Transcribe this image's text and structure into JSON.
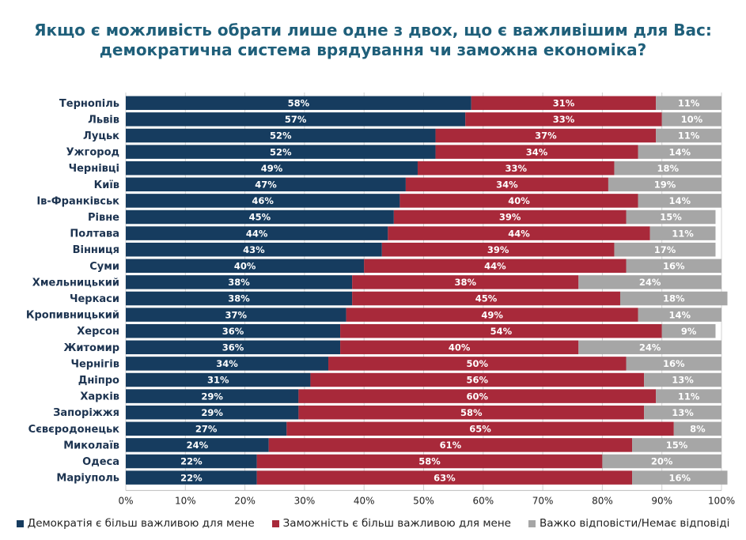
{
  "chart_data": {
    "type": "bar",
    "orientation": "horizontal",
    "stacked": true,
    "title": "Якщо є можливість обрати лише одне з двох, що є важливішим для Вас: демократична система врядування чи заможна економіка?",
    "title_lines": [
      "Якщо є можливість обрати лише одне з двох, що є важливішим для Вас:",
      "демократична система врядування чи заможна економіка?"
    ],
    "categories": [
      "Тернопіль",
      "Львів",
      "Луцьк",
      "Ужгород",
      "Чернівці",
      "Київ",
      "Ів-Франківськ",
      "Рівне",
      "Полтава",
      "Вінниця",
      "Суми",
      "Хмельницький",
      "Черкаси",
      "Кропивницький",
      "Херсон",
      "Житомир",
      "Чернігів",
      "Дніпро",
      "Харків",
      "Запоріжжя",
      "Сєвєродонецьк",
      "Миколаїв",
      "Одеса",
      "Маріуполь"
    ],
    "series": [
      {
        "name": "Демократія є більш важливою для мене",
        "color": "#163c5f",
        "values": [
          58,
          57,
          52,
          52,
          49,
          47,
          46,
          45,
          44,
          43,
          40,
          38,
          38,
          37,
          36,
          36,
          34,
          31,
          29,
          29,
          27,
          24,
          22,
          22
        ]
      },
      {
        "name": "Заможність є більш важливою для мене",
        "color": "#a8293a",
        "values": [
          31,
          33,
          37,
          34,
          33,
          34,
          40,
          39,
          44,
          39,
          44,
          38,
          45,
          49,
          54,
          40,
          50,
          56,
          60,
          58,
          65,
          61,
          58,
          63
        ]
      },
      {
        "name": "Важко відповісти/Немає відповіді",
        "color": "#a6a6a6",
        "values": [
          11,
          10,
          11,
          14,
          18,
          19,
          14,
          15,
          11,
          17,
          16,
          24,
          18,
          14,
          9,
          24,
          16,
          13,
          11,
          13,
          8,
          15,
          20,
          16
        ]
      }
    ],
    "xlim": [
      0,
      100
    ],
    "xticks": [
      "0%",
      "10%",
      "20%",
      "30%",
      "40%",
      "50%",
      "60%",
      "70%",
      "80%",
      "90%",
      "100%"
    ],
    "grid": true,
    "legend_position": "bottom"
  }
}
